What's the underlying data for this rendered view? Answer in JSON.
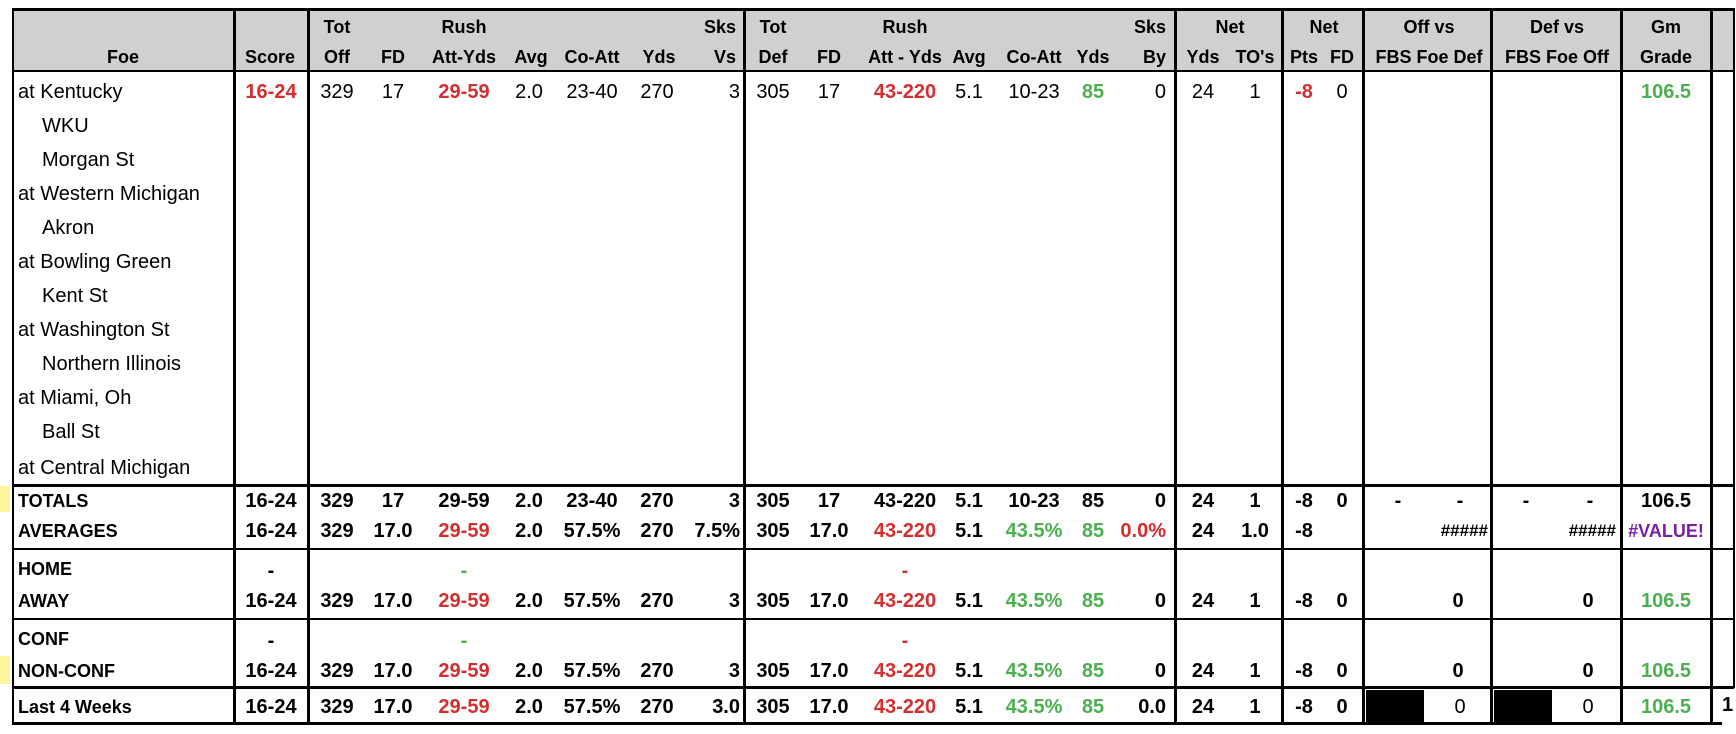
{
  "header": {
    "foe": "Foe",
    "score": "Score",
    "tot_off": [
      "Tot",
      "Off"
    ],
    "fd": "FD",
    "rush": "Rush",
    "att_yds": "Att-Yds",
    "avg": "Avg",
    "co_att": "Co-Att",
    "yds": "Yds",
    "sks_vs": [
      "Sks",
      "Vs"
    ],
    "tot_def": [
      "Tot",
      "Def"
    ],
    "fd2": "FD",
    "rush2": "Rush",
    "att_yds2": "Att - Yds",
    "avg2": "Avg",
    "co_att2": "Co-Att",
    "yds2": "Yds",
    "sks_by": [
      "Sks",
      "By"
    ],
    "net1": "Net",
    "net_yds": "Yds",
    "net_tos": "TO's",
    "net2": "Net",
    "net_pts": "Pts",
    "net_fd": "FD",
    "off_vs": [
      "Off vs",
      "FBS Foe Def"
    ],
    "def_vs": [
      "Def vs",
      "FBS Foe Off"
    ],
    "gm_grade": [
      "Gm",
      "Grade"
    ]
  },
  "games": [
    "at Kentucky",
    "WKU",
    "Morgan St",
    "at Western Michigan",
    "Akron",
    "at Bowling Green",
    "Kent St",
    "at Washington St",
    "Northern Illinois",
    "at Miami, Oh",
    "Ball St",
    "at Central Michigan"
  ],
  "game1": [
    "16-24",
    "329",
    "17",
    "29-59",
    "2.0",
    "23-40",
    "270",
    "3",
    "305",
    "17",
    "43-220",
    "5.1",
    "10-23",
    "85",
    "0",
    "24",
    "1",
    "-8",
    "0",
    "",
    "",
    "106.5"
  ],
  "totals": [
    "TOTALS",
    "16-24",
    "329",
    "17",
    "29-59",
    "2.0",
    "23-40",
    "270",
    "3",
    "305",
    "17",
    "43-220",
    "5.1",
    "10-23",
    "85",
    "0",
    "24",
    "1",
    "-8",
    "0",
    "-",
    "-",
    "-",
    "-",
    "106.5"
  ],
  "averages": [
    "AVERAGES",
    "16-24",
    "329",
    "17.0",
    "29-59",
    "2.0",
    "57.5%",
    "270",
    "7.5%",
    "305",
    "17.0",
    "43-220",
    "5.1",
    "43.5%",
    "85",
    "0.0%",
    "24",
    "1.0",
    "-8",
    "#####",
    "#####",
    "#VALUE!"
  ],
  "home": [
    "HOME",
    "-",
    "-",
    "-"
  ],
  "away": [
    "AWAY",
    "16-24",
    "329",
    "17.0",
    "29-59",
    "2.0",
    "57.5%",
    "270",
    "3",
    "305",
    "17.0",
    "43-220",
    "5.1",
    "43.5%",
    "85",
    "0",
    "24",
    "1",
    "-8",
    "0",
    "0",
    "0",
    "106.5"
  ],
  "conf": [
    "CONF",
    "-",
    "-",
    "-"
  ],
  "nonconf": [
    "NON-CONF",
    "16-24",
    "329",
    "17.0",
    "29-59",
    "2.0",
    "57.5%",
    "270",
    "3",
    "305",
    "17.0",
    "43-220",
    "5.1",
    "43.5%",
    "85",
    "0",
    "24",
    "1",
    "-8",
    "0",
    "0",
    "0",
    "106.5"
  ],
  "last4": [
    "Last 4 Weeks",
    "16-24",
    "329",
    "17.0",
    "29-59",
    "2.0",
    "57.5%",
    "270",
    "3.0",
    "305",
    "17.0",
    "43-220",
    "5.1",
    "43.5%",
    "85",
    "0.0",
    "24",
    "1",
    "-8",
    "0",
    "0",
    "0",
    "106.5",
    "1"
  ],
  "colors": {
    "red": "#d32f2f",
    "green": "#4caf50",
    "purple": "#7b1fa2",
    "header_bg": "#d0d0d0"
  }
}
